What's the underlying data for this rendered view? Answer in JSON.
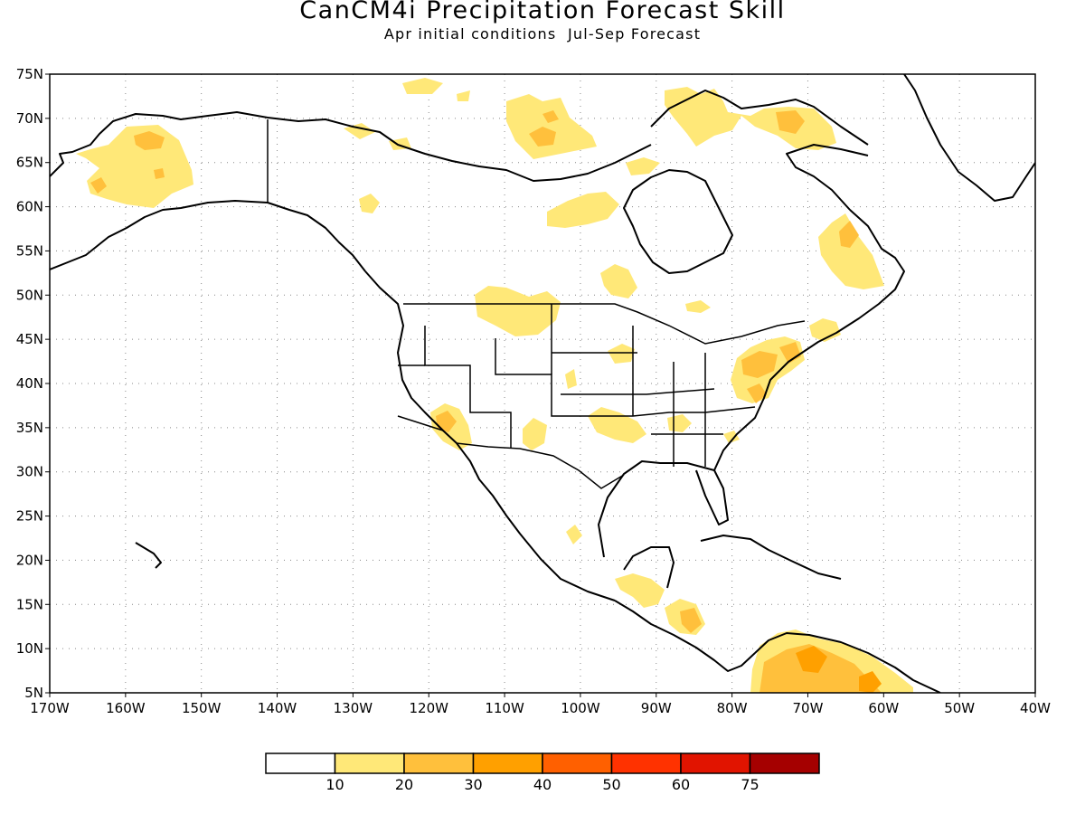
{
  "title": "CanCM4i Precipitation Forecast Skill",
  "subtitle": "Apr initial conditions  Jul-Sep Forecast",
  "map": {
    "lon_range": [
      -170,
      -40
    ],
    "lat_range": [
      5,
      75
    ],
    "lat_labels": [
      "5N",
      "10N",
      "15N",
      "20N",
      "25N",
      "30N",
      "35N",
      "40N",
      "45N",
      "50N",
      "55N",
      "60N",
      "65N",
      "70N",
      "75N"
    ],
    "lon_labels": [
      "170W",
      "160W",
      "150W",
      "140W",
      "130W",
      "120W",
      "110W",
      "100W",
      "90W",
      "80W",
      "70W",
      "60W",
      "50W",
      "40W"
    ],
    "grid": true
  },
  "legend": {
    "colors": [
      "#ffffff",
      "#ffe878",
      "#ffc03c",
      "#ffa000",
      "#ff6000",
      "#ff3200",
      "#e11400",
      "#a50000"
    ],
    "labels": [
      "10",
      "20",
      "30",
      "40",
      "50",
      "60",
      "75"
    ]
  }
}
